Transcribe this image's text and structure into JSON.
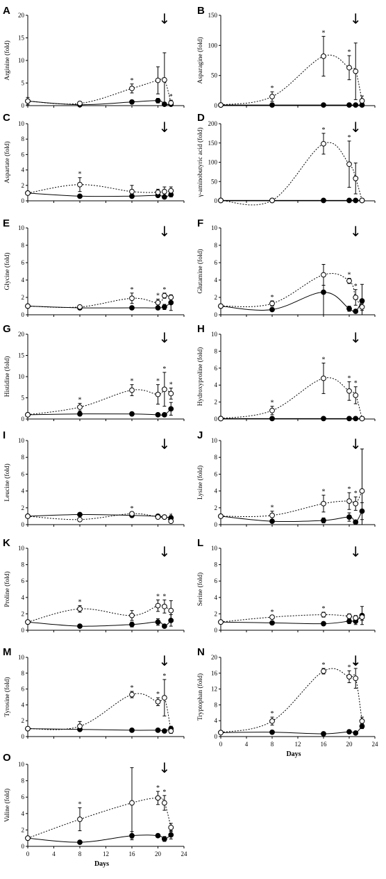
{
  "colors": {
    "axis": "#000000",
    "open_fill": "#ffffff",
    "filled": "#000000"
  },
  "x_ticks": [
    "0",
    "4",
    "8",
    "12",
    "16",
    "20",
    "24"
  ],
  "x_label": "Days",
  "arrow_glyph": "↓",
  "star_glyph": "*",
  "chart_data": [
    {
      "panel": "A",
      "type": "line",
      "ylabel": "Arginine (fold)",
      "ylim": [
        0,
        20
      ],
      "yticks": [
        "0",
        "5",
        "10",
        "15",
        "20"
      ],
      "arrow_x": 21,
      "show_x_ticks": false,
      "x": [
        0,
        8,
        16,
        20,
        21,
        22
      ],
      "series": [
        {
          "style": "open",
          "values": [
            1,
            0.5,
            3.8,
            5.6,
            5.7,
            0.6
          ],
          "err": [
            0.8,
            0.4,
            1,
            3,
            6,
            0.6
          ],
          "stars": [
            false,
            false,
            true,
            false,
            false,
            true
          ]
        },
        {
          "style": "filled",
          "values": [
            1,
            0.2,
            0.8,
            1.1,
            0.3,
            0.3
          ],
          "err": [
            0.3,
            0.1,
            0.4,
            0.5,
            0.2,
            0.2
          ]
        }
      ]
    },
    {
      "panel": "B",
      "type": "line",
      "ylabel": "Asparagine (fold)",
      "ylim": [
        0,
        150
      ],
      "yticks": [
        "0",
        "50",
        "100",
        "150"
      ],
      "arrow_x": 21,
      "show_x_ticks": false,
      "x": [
        0,
        8,
        16,
        20,
        21,
        22
      ],
      "series": [
        {
          "style": "open",
          "values": [
            1,
            15,
            82,
            63,
            57,
            8
          ],
          "err": [
            1,
            8,
            33,
            20,
            47,
            8
          ],
          "stars": [
            false,
            true,
            true,
            true,
            false,
            false
          ]
        },
        {
          "style": "filled",
          "values": [
            1,
            1,
            1,
            1,
            1,
            1
          ],
          "err": [
            0,
            0,
            0,
            0,
            0,
            0
          ]
        }
      ]
    },
    {
      "panel": "C",
      "type": "line",
      "ylabel": "Aspartate (fold)",
      "ylim": [
        0,
        10
      ],
      "yticks": [
        "0",
        "2",
        "4",
        "6",
        "8",
        "10"
      ],
      "arrow_x": 21,
      "show_x_ticks": false,
      "x": [
        0,
        8,
        16,
        20,
        21,
        22
      ],
      "series": [
        {
          "style": "open",
          "values": [
            1,
            2.1,
            1.2,
            1.1,
            1.2,
            1.3
          ],
          "err": [
            0.2,
            0.9,
            0.8,
            0.4,
            0.6,
            0.5
          ],
          "stars": [
            false,
            true,
            false,
            false,
            false,
            false
          ]
        },
        {
          "style": "filled",
          "values": [
            1,
            0.6,
            0.6,
            0.7,
            0.5,
            0.8
          ],
          "err": [
            0.2,
            0.2,
            0.2,
            0.2,
            0.2,
            0.3
          ]
        }
      ]
    },
    {
      "panel": "D",
      "type": "line",
      "ylabel": "γ-aminobutyric acid (fold)",
      "ylim": [
        0,
        200
      ],
      "yticks": [
        "0",
        "50",
        "100",
        "150",
        "200"
      ],
      "arrow_x": 21,
      "show_x_ticks": false,
      "x": [
        0,
        8,
        16,
        20,
        21,
        22
      ],
      "series": [
        {
          "style": "open",
          "values": [
            1,
            1,
            148,
            95,
            58,
            1
          ],
          "err": [
            0,
            0,
            27,
            60,
            40,
            0
          ],
          "stars": [
            false,
            false,
            true,
            true,
            false,
            false
          ]
        },
        {
          "style": "filled",
          "values": [
            1,
            1,
            1,
            1,
            1,
            1
          ],
          "err": [
            0,
            0,
            0,
            0,
            0,
            0
          ]
        }
      ]
    },
    {
      "panel": "E",
      "type": "line",
      "ylabel": "Glycine (fold)",
      "ylim": [
        0,
        10
      ],
      "yticks": [
        "0",
        "2",
        "4",
        "6",
        "8",
        "10"
      ],
      "arrow_x": 21,
      "show_x_ticks": false,
      "x": [
        0,
        8,
        16,
        20,
        21,
        22
      ],
      "series": [
        {
          "style": "open",
          "values": [
            1,
            0.9,
            1.9,
            1.4,
            2.2,
            2.0
          ],
          "err": [
            0.1,
            0.1,
            0.6,
            0.4,
            0.3,
            0.2
          ],
          "stars": [
            false,
            false,
            true,
            true,
            true,
            false
          ]
        },
        {
          "style": "filled",
          "values": [
            1,
            0.8,
            0.8,
            0.8,
            0.9,
            1.4
          ],
          "err": [
            0.1,
            0.1,
            0.2,
            0.2,
            0.3,
            0.9
          ]
        }
      ]
    },
    {
      "panel": "F",
      "type": "line",
      "ylabel": "Glutamine (fold)",
      "ylim": [
        0,
        10
      ],
      "yticks": [
        "0",
        "2",
        "4",
        "6",
        "8",
        "10"
      ],
      "arrow_x": 21,
      "show_x_ticks": false,
      "x": [
        0,
        8,
        16,
        20,
        21,
        22
      ],
      "series": [
        {
          "style": "open",
          "values": [
            1,
            1.3,
            4.6,
            3.9,
            2.0,
            0.9
          ],
          "err": [
            0.2,
            0.3,
            1.2,
            0.3,
            0.9,
            0.4
          ],
          "stars": [
            false,
            true,
            false,
            true,
            true,
            false
          ]
        },
        {
          "style": "filled",
          "values": [
            1,
            0.6,
            2.6,
            0.7,
            0.4,
            1.6
          ],
          "err": [
            0.2,
            0.1,
            3.2,
            0.3,
            0.2,
            1.9
          ]
        }
      ]
    },
    {
      "panel": "G",
      "type": "line",
      "ylabel": "Histidine (fold)",
      "ylim": [
        0,
        20
      ],
      "yticks": [
        "0",
        "5",
        "10",
        "15",
        "20"
      ],
      "arrow_x": 21,
      "show_x_ticks": false,
      "x": [
        0,
        8,
        16,
        20,
        21,
        22
      ],
      "series": [
        {
          "style": "open",
          "values": [
            1,
            2.8,
            6.8,
            5.8,
            7.0,
            6.0
          ],
          "err": [
            0.2,
            0.9,
            1.3,
            2.3,
            4.0,
            1.3
          ],
          "stars": [
            false,
            true,
            true,
            true,
            true,
            true
          ]
        },
        {
          "style": "filled",
          "values": [
            1,
            1.2,
            1.2,
            1.0,
            1.0,
            2.4
          ],
          "err": [
            0.1,
            0.2,
            0.2,
            0.2,
            0.4,
            1.5
          ]
        }
      ]
    },
    {
      "panel": "H",
      "type": "line",
      "ylabel": "Hydroxyproline (fold)",
      "ylim": [
        0,
        10
      ],
      "yticks": [
        "0",
        "2",
        "4",
        "6",
        "8",
        "10"
      ],
      "arrow_x": 21,
      "show_x_ticks": false,
      "x": [
        0,
        8,
        16,
        20,
        21,
        22
      ],
      "series": [
        {
          "style": "open",
          "values": [
            0.05,
            1.0,
            4.8,
            3.3,
            2.8,
            0.05
          ],
          "err": [
            0,
            0.5,
            1.8,
            1.1,
            1.0,
            0
          ],
          "stars": [
            false,
            true,
            true,
            true,
            true,
            false
          ]
        },
        {
          "style": "filled",
          "values": [
            0.05,
            0.05,
            0.05,
            0.05,
            0.05,
            0.05
          ],
          "err": [
            0,
            0,
            0,
            0,
            0,
            0
          ]
        }
      ]
    },
    {
      "panel": "I",
      "type": "line",
      "ylabel": "Leucine (fold)",
      "ylim": [
        0,
        10
      ],
      "yticks": [
        "0",
        "2",
        "4",
        "6",
        "8",
        "10"
      ],
      "arrow_x": 21,
      "show_x_ticks": false,
      "x": [
        0,
        8,
        16,
        20,
        21,
        22
      ],
      "series": [
        {
          "style": "open",
          "values": [
            1,
            0.6,
            1.3,
            0.9,
            0.9,
            0.4
          ],
          "err": [
            0.1,
            0.2,
            0.2,
            0.2,
            0.2,
            0.2
          ],
          "stars": [
            false,
            false,
            true,
            false,
            false,
            true
          ]
        },
        {
          "style": "filled",
          "values": [
            1,
            1.2,
            1.1,
            1.0,
            0.9,
            0.8
          ],
          "err": [
            0.1,
            0.2,
            0.2,
            0.2,
            0.2,
            0.2
          ]
        }
      ]
    },
    {
      "panel": "J",
      "type": "line",
      "ylabel": "Lysine (fold)",
      "ylim": [
        0,
        10
      ],
      "yticks": [
        "0",
        "2",
        "4",
        "6",
        "8",
        "10"
      ],
      "arrow_x": 21,
      "show_x_ticks": false,
      "x": [
        0,
        8,
        16,
        20,
        21,
        22
      ],
      "series": [
        {
          "style": "open",
          "values": [
            1,
            1.1,
            2.5,
            2.8,
            2.5,
            4.0
          ],
          "err": [
            0.2,
            0.5,
            1.0,
            1.0,
            0.8,
            5.0
          ],
          "stars": [
            false,
            true,
            true,
            true,
            true,
            false
          ]
        },
        {
          "style": "filled",
          "values": [
            1,
            0.4,
            0.5,
            0.9,
            0.3,
            1.6
          ],
          "err": [
            0.2,
            0.1,
            0.3,
            0.5,
            0.1,
            1.0
          ]
        }
      ]
    },
    {
      "panel": "K",
      "type": "line",
      "ylabel": "Proline (fold)",
      "ylim": [
        0,
        10
      ],
      "yticks": [
        "0",
        "2",
        "4",
        "6",
        "8",
        "10"
      ],
      "arrow_x": 21,
      "show_x_ticks": false,
      "x": [
        0,
        8,
        16,
        20,
        21,
        22
      ],
      "series": [
        {
          "style": "open",
          "values": [
            1,
            2.6,
            1.8,
            3.0,
            2.9,
            2.4
          ],
          "err": [
            0.2,
            0.4,
            0.6,
            0.7,
            0.8,
            1.2
          ],
          "stars": [
            false,
            true,
            false,
            true,
            true,
            false
          ]
        },
        {
          "style": "filled",
          "values": [
            1,
            0.5,
            0.7,
            1.0,
            0.5,
            1.2
          ],
          "err": [
            0.2,
            0.1,
            0.3,
            0.4,
            0.2,
            0.7
          ]
        }
      ]
    },
    {
      "panel": "L",
      "type": "line",
      "ylabel": "Serine (fold)",
      "ylim": [
        0,
        10
      ],
      "yticks": [
        "0",
        "2",
        "4",
        "6",
        "8",
        "10"
      ],
      "arrow_x": 21,
      "show_x_ticks": false,
      "x": [
        0,
        8,
        16,
        20,
        21,
        22
      ],
      "series": [
        {
          "style": "open",
          "values": [
            1,
            1.6,
            1.9,
            1.7,
            1.5,
            1.6
          ],
          "err": [
            0.1,
            0.2,
            0.3,
            0.3,
            0.3,
            0.4
          ],
          "stars": [
            false,
            true,
            true,
            false,
            false,
            false
          ]
        },
        {
          "style": "filled",
          "values": [
            1,
            0.9,
            0.8,
            1.1,
            1.1,
            1.8
          ],
          "err": [
            0.1,
            0.2,
            0.2,
            0.3,
            0.4,
            1.1
          ]
        }
      ]
    },
    {
      "panel": "M",
      "type": "line",
      "ylabel": "Tyrosine (fold)",
      "ylim": [
        0,
        10
      ],
      "yticks": [
        "0",
        "2",
        "4",
        "6",
        "8",
        "10"
      ],
      "arrow_x": 21,
      "show_x_ticks": false,
      "x": [
        0,
        8,
        16,
        20,
        21,
        22
      ],
      "series": [
        {
          "style": "open",
          "values": [
            1,
            1.3,
            5.3,
            4.4,
            4.9,
            0.7
          ],
          "err": [
            0.1,
            0.6,
            0.4,
            0.5,
            2.3,
            0.3
          ],
          "stars": [
            false,
            false,
            true,
            true,
            true,
            false
          ]
        },
        {
          "style": "filled",
          "values": [
            1,
            0.9,
            0.8,
            0.8,
            0.7,
            1.0
          ],
          "err": [
            0.1,
            0.2,
            0.2,
            0.2,
            0.2,
            0.3
          ]
        }
      ]
    },
    {
      "panel": "N",
      "type": "line",
      "ylabel": "Tryptophan (fold)",
      "ylim": [
        0,
        20
      ],
      "yticks": [
        "0",
        "4",
        "8",
        "12",
        "16",
        "20"
      ],
      "arrow_x": 21,
      "show_x_ticks": true,
      "x": [
        0,
        8,
        16,
        20,
        21,
        22
      ],
      "series": [
        {
          "style": "open",
          "values": [
            1,
            3.9,
            16.5,
            15.1,
            14.7,
            3.9
          ],
          "err": [
            0.1,
            1.0,
            0.7,
            1.5,
            2.5,
            1.0
          ],
          "stars": [
            false,
            true,
            true,
            true,
            true,
            false
          ]
        },
        {
          "style": "filled",
          "values": [
            1,
            1.1,
            0.7,
            1.2,
            0.9,
            2.6
          ],
          "err": [
            0.1,
            0.2,
            0.2,
            0.3,
            0.3,
            0.6
          ]
        }
      ]
    },
    {
      "panel": "O",
      "type": "line",
      "ylabel": "Valine (fold)",
      "ylim": [
        0,
        10
      ],
      "yticks": [
        "0",
        "2",
        "4",
        "6",
        "8",
        "10"
      ],
      "arrow_x": 21,
      "show_x_ticks": true,
      "x": [
        0,
        8,
        16,
        20,
        21,
        22
      ],
      "series": [
        {
          "style": "open",
          "values": [
            1,
            3.3,
            5.3,
            5.9,
            5.3,
            2.3
          ],
          "err": [
            0.2,
            1.4,
            4.3,
            0.8,
            0.9,
            0.5
          ],
          "stars": [
            false,
            true,
            false,
            true,
            true,
            false
          ]
        },
        {
          "style": "filled",
          "values": [
            1,
            0.5,
            1.3,
            1.3,
            0.9,
            1.4
          ],
          "err": [
            0.2,
            0.1,
            0.5,
            0.2,
            0.3,
            0.5
          ]
        }
      ]
    }
  ]
}
